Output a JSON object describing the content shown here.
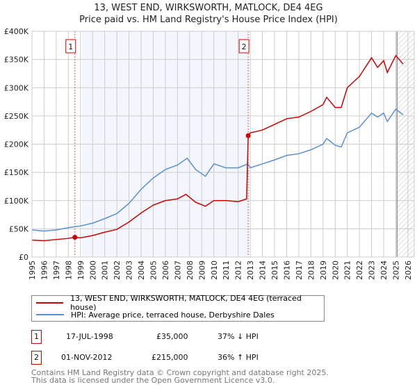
{
  "chart_data": {
    "type": "line",
    "title": "13, WEST END, WIRKSWORTH, MATLOCK, DE4 4EG",
    "subtitle": "Price paid vs. HM Land Registry's House Price Index (HPI)",
    "xlim": [
      1995,
      2026.5
    ],
    "ylim": [
      0,
      400000
    ],
    "x_ticks": [
      "1995",
      "1996",
      "1997",
      "1998",
      "1999",
      "2000",
      "2001",
      "2002",
      "2003",
      "2004",
      "2005",
      "2006",
      "2007",
      "2008",
      "2009",
      "2010",
      "2011",
      "2012",
      "2013",
      "2014",
      "2015",
      "2016",
      "2017",
      "2018",
      "2019",
      "2020",
      "2021",
      "2022",
      "2023",
      "2024",
      "2025",
      "2026"
    ],
    "y_ticks": [
      {
        "v": 0,
        "l": "£0"
      },
      {
        "v": 50000,
        "l": "£50K"
      },
      {
        "v": 100000,
        "l": "£100K"
      },
      {
        "v": 150000,
        "l": "£150K"
      },
      {
        "v": 200000,
        "l": "£200K"
      },
      {
        "v": 250000,
        "l": "£250K"
      },
      {
        "v": 300000,
        "l": "£300K"
      },
      {
        "v": 350000,
        "l": "£350K"
      },
      {
        "v": 400000,
        "l": "£400K"
      }
    ],
    "grid": true,
    "shaded_range": [
      1999.1,
      2012.83
    ],
    "forecast_hatch_from": 2025.1,
    "series": [
      {
        "name": "13, WEST END, WIRKSWORTH, MATLOCK, DE4 4EG (terraced house)",
        "color": "#cc0000",
        "x": [
          1995,
          1996,
          1997,
          1998,
          1998.54,
          1999,
          2000,
          2001,
          2002,
          2003,
          2004,
          2005,
          2006,
          2007,
          2007.7,
          2008.5,
          2009.3,
          2010,
          2011,
          2012,
          2012.7,
          2012.83,
          2013,
          2014,
          2015,
          2016,
          2017,
          2018,
          2019,
          2019.3,
          2020,
          2020.5,
          2021,
          2022,
          2023,
          2023.5,
          2024,
          2024.3,
          2025,
          2025.6
        ],
        "y": [
          30000,
          29000,
          31000,
          33000,
          35000,
          34000,
          38000,
          44000,
          49000,
          62000,
          78000,
          92000,
          100000,
          103000,
          111000,
          97000,
          90000,
          100000,
          100000,
          98000,
          103000,
          215000,
          220000,
          225000,
          235000,
          245000,
          248000,
          258000,
          270000,
          283000,
          265000,
          265000,
          300000,
          320000,
          353000,
          336000,
          348000,
          327000,
          357000,
          342000
        ]
      },
      {
        "name": "HPI: Average price, terraced house, Derbyshire Dales",
        "color": "#5b8fd4",
        "x": [
          1995,
          1996,
          1997,
          1998,
          1999,
          2000,
          2001,
          2002,
          2003,
          2004,
          2005,
          2006,
          2007,
          2007.8,
          2008.5,
          2009.3,
          2010,
          2011,
          2012,
          2012.8,
          2013,
          2014,
          2015,
          2016,
          2017,
          2018,
          2019,
          2019.3,
          2020,
          2020.5,
          2021,
          2022,
          2023,
          2023.5,
          2024,
          2024.3,
          2025,
          2025.6
        ],
        "y": [
          48000,
          46000,
          48000,
          52000,
          55000,
          60000,
          68000,
          77000,
          95000,
          120000,
          140000,
          155000,
          163000,
          175000,
          155000,
          143000,
          165000,
          158000,
          158000,
          165000,
          158000,
          165000,
          172000,
          180000,
          183000,
          190000,
          200000,
          210000,
          198000,
          195000,
          220000,
          230000,
          255000,
          248000,
          255000,
          240000,
          262000,
          252000
        ]
      }
    ],
    "sales": [
      {
        "label": "1",
        "x": 1998.54,
        "y": 35000,
        "date": "17-JUL-1998",
        "price": "£35,000",
        "hpi": "37% ↓ HPI"
      },
      {
        "label": "2",
        "x": 2012.83,
        "y": 215000,
        "date": "01-NOV-2012",
        "price": "£215,000",
        "hpi": "36% ↑ HPI"
      }
    ]
  },
  "footer": {
    "line1": "Contains HM Land Registry data © Crown copyright and database right 2025.",
    "line2": "This data is licensed under the Open Government Licence v3.0."
  }
}
